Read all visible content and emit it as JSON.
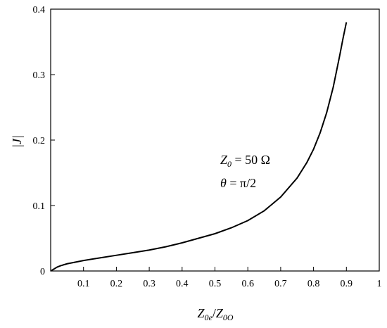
{
  "chart_data": {
    "type": "line",
    "xlabel": "Z0e/Z0O",
    "ylabel": "|J|",
    "xlim": [
      0,
      1
    ],
    "ylim": [
      0,
      0.4
    ],
    "x_ticks": [
      "0.1",
      "0.2",
      "0.3",
      "0.4",
      "0.5",
      "0.6",
      "0.7",
      "0.8",
      "0.9",
      "1"
    ],
    "y_ticks": [
      "0",
      "0.1",
      "0.2",
      "0.3",
      "0.4"
    ],
    "grid": false,
    "series": [
      {
        "x": [
          0.0,
          0.01,
          0.02,
          0.03,
          0.05,
          0.08,
          0.1,
          0.15,
          0.2,
          0.25,
          0.3,
          0.35,
          0.4,
          0.45,
          0.5,
          0.55,
          0.6,
          0.65,
          0.7,
          0.75,
          0.78,
          0.8,
          0.82,
          0.84,
          0.86,
          0.88,
          0.89,
          0.9
        ],
        "y": [
          0.0,
          0.003,
          0.006,
          0.008,
          0.011,
          0.014,
          0.016,
          0.02,
          0.024,
          0.028,
          0.032,
          0.037,
          0.043,
          0.05,
          0.057,
          0.066,
          0.077,
          0.092,
          0.113,
          0.142,
          0.166,
          0.186,
          0.211,
          0.242,
          0.281,
          0.33,
          0.356,
          0.38
        ]
      }
    ],
    "annotations": {
      "line1_main": "Z",
      "line1_sub": "0",
      "line1_rest": " = 50 Ω",
      "line2_sym": "θ",
      "line2_rest": " = π/2"
    },
    "xlabel_parts": {
      "a": "Z",
      "a_sub": "0e",
      "sep": "/",
      "b": "Z",
      "b_sub": "0O"
    },
    "ylabel_text": "|J|"
  }
}
